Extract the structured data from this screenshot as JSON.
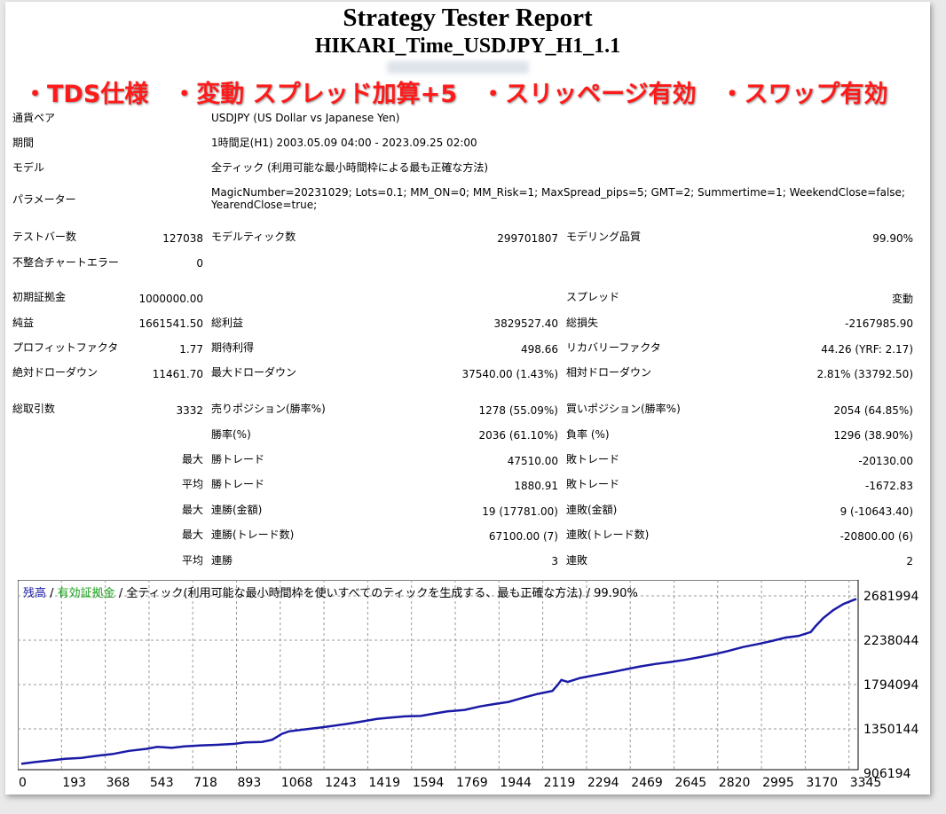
{
  "report": {
    "title": "Strategy Tester Report",
    "subtitle": "HIKARI_Time_USDJPY_H1_1.1",
    "promo": "・TDS仕様　・変動 スプレッド加算+5　・スリッページ有効　・スワップ有効"
  },
  "info": {
    "pair_label": "通貨ペア",
    "pair_value": "USDJPY (US Dollar vs Japanese Yen)",
    "period_label": "期間",
    "period_value": "1時間足(H1) 2003.05.09 04:00 - 2023.09.25 02:00",
    "model_label": "モデル",
    "model_value": "全ティック (利用可能な最小時間枠による最も正確な方法)",
    "param_label": "パラメーター",
    "param_value": "MagicNumber=20231029; Lots=0.1; MM_ON=0; MM_Risk=1; MaxSpread_pips=5; GMT=2; Summertime=1; WeekendClose=false; YearendClose=true;"
  },
  "stats": {
    "bars_label": "テストバー数",
    "bars_value": "127038",
    "ticks_label": "モデルティック数",
    "ticks_value": "299701807",
    "quality_label": "モデリング品質",
    "quality_value": "99.90%",
    "mismatch_label": "不整合チャートエラー",
    "mismatch_value": "0",
    "deposit_label": "初期証拠金",
    "deposit_value": "1000000.00",
    "spread_label": "スプレッド",
    "spread_value": "変動",
    "net_label": "純益",
    "net_value": "1661541.50",
    "gross_profit_label": "総利益",
    "gross_profit_value": "3829527.40",
    "gross_loss_label": "総損失",
    "gross_loss_value": "-2167985.90",
    "pf_label": "プロフィットファクタ",
    "pf_value": "1.77",
    "expected_label": "期待利得",
    "expected_value": "498.66",
    "recovery_label": "リカバリーファクタ",
    "recovery_value": "44.26 (YRF: 2.17)",
    "abs_dd_label": "絶対ドローダウン",
    "abs_dd_value": "11461.70",
    "max_dd_label": "最大ドローダウン",
    "max_dd_value": "37540.00 (1.43%)",
    "rel_dd_label": "相対ドローダウン",
    "rel_dd_value": "2.81% (33792.50)"
  },
  "trades": {
    "total_label": "総取引数",
    "total_value": "3332",
    "short_label": "売りポジション(勝率%)",
    "short_value": "1278 (55.09%)",
    "long_label": "買いポジション(勝率%)",
    "long_value": "2054 (64.85%)",
    "win_rate_label": "勝率(%)",
    "win_rate_value": "2036 (61.10%)",
    "loss_rate_label": "負率 (%)",
    "loss_rate_value": "1296 (38.90%)",
    "max_label": "最大",
    "avg_label": "平均",
    "win_trade_label": "勝トレード",
    "loss_trade_label": "敗トレード",
    "max_win_value": "47510.00",
    "max_loss_value": "-20130.00",
    "avg_win_value": "1880.91",
    "avg_loss_value": "-1672.83",
    "cons_win_money_label": "連勝(金額)",
    "cons_win_money_value": "19 (17781.00)",
    "cons_loss_money_label": "連敗(金額)",
    "cons_loss_money_value": "9 (-10643.40)",
    "cons_win_count_label": "連勝(トレード数)",
    "cons_win_count_value": "67100.00 (7)",
    "cons_loss_count_label": "連敗(トレード数)",
    "cons_loss_count_value": "-20800.00 (6)",
    "avg_cons_win_label": "連勝",
    "avg_cons_win_value": "3",
    "avg_cons_loss_label": "連敗",
    "avg_cons_loss_value": "2"
  },
  "chart_legend": {
    "balance": "残高",
    "sep1": " / ",
    "equity": "有効証拠金",
    "rest": " / 全ティック(利用可能な最小時間枠を使いすべてのティックを生成する、最も正確な方法) / 99.90%"
  },
  "chart_data": {
    "type": "line",
    "x_ticks": [
      "0",
      "193",
      "368",
      "543",
      "718",
      "893",
      "1068",
      "1243",
      "1419",
      "1594",
      "1769",
      "1944",
      "2119",
      "2294",
      "2469",
      "2645",
      "2820",
      "2995",
      "3170",
      "3345"
    ],
    "y_ticks": [
      "2681994",
      "2238044",
      "1794094",
      "1350144",
      "906194"
    ],
    "xlim": [
      0,
      3332
    ],
    "ylim": [
      906194,
      2681994
    ],
    "series": [
      {
        "color": "#1a1aa6",
        "x": [
          0,
          60,
          120,
          175,
          240,
          300,
          368,
          430,
          500,
          543,
          600,
          650,
          718,
          780,
          850,
          893,
          960,
          1000,
          1040,
          1068,
          1130,
          1200,
          1243,
          1300,
          1360,
          1419,
          1470,
          1530,
          1594,
          1650,
          1700,
          1769,
          1830,
          1890,
          1944,
          2000,
          2060,
          2119,
          2140,
          2155,
          2180,
          2230,
          2294,
          2360,
          2420,
          2469,
          2530,
          2590,
          2645,
          2700,
          2760,
          2820,
          2880,
          2940,
          2995,
          3050,
          3100,
          3150,
          3170,
          3200,
          3240,
          3280,
          3320,
          3332
        ],
        "y": [
          1000000,
          1020000,
          1035000,
          1050000,
          1060000,
          1080000,
          1100000,
          1130000,
          1150000,
          1170000,
          1160000,
          1175000,
          1185000,
          1190000,
          1200000,
          1215000,
          1220000,
          1240000,
          1300000,
          1325000,
          1345000,
          1365000,
          1380000,
          1400000,
          1425000,
          1450000,
          1462000,
          1475000,
          1480000,
          1505000,
          1525000,
          1540000,
          1575000,
          1600000,
          1620000,
          1660000,
          1700000,
          1730000,
          1790000,
          1840000,
          1820000,
          1860000,
          1890000,
          1920000,
          1950000,
          1975000,
          2000000,
          2020000,
          2040000,
          2065000,
          2095000,
          2130000,
          2170000,
          2200000,
          2230000,
          2265000,
          2280000,
          2320000,
          2380000,
          2460000,
          2540000,
          2600000,
          2640000,
          2650000
        ]
      }
    ],
    "grid": true
  }
}
